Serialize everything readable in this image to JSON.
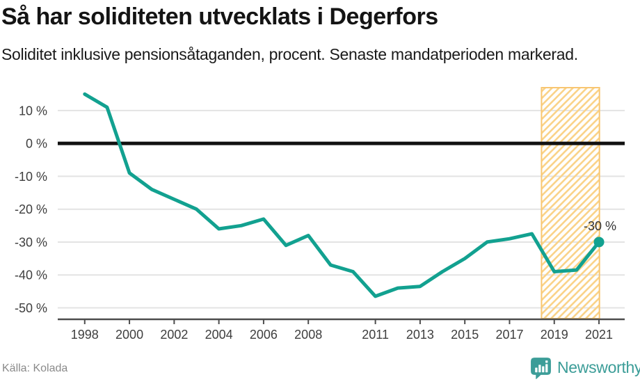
{
  "header": {
    "title": "Så har soliditeten utvecklats i Degerfors",
    "subtitle": "Soliditet inklusive pensionsåtaganden, procent. Senaste mandatperioden markerad."
  },
  "footer": {
    "source": "Källa: Kolada",
    "brand": "Newsworthy",
    "logo_icon": "newsworthy-speech-bubble-bar-chart-icon"
  },
  "colors": {
    "line": "#12A190",
    "dot": "#12A190",
    "zero_line": "#111111",
    "grid": "#E3E3E3",
    "axis": "#4D4D4D",
    "tick_text": "#3E3E3E",
    "band_border": "#F8C671",
    "band_hatch": "#FAD389",
    "annotation_text": "#333333",
    "brand_teal": "#3C9D98",
    "source_text": "#8A8A8A"
  },
  "chart_data": {
    "type": "line",
    "title": "Så har soliditeten utvecklats i Degerfors",
    "ylabel": "Soliditet inklusive pensionsåtaganden, procent",
    "x": [
      1998,
      1999,
      2000,
      2001,
      2002,
      2003,
      2004,
      2005,
      2006,
      2007,
      2008,
      2009,
      2010,
      2011,
      2012,
      2013,
      2014,
      2015,
      2016,
      2017,
      2018,
      2019,
      2020,
      2021
    ],
    "values": [
      15,
      11,
      -9,
      -14,
      -17,
      -20,
      -26,
      -25,
      -23,
      -31,
      -28,
      -37,
      -39,
      -46.5,
      -44,
      -43.5,
      -39,
      -35,
      -30,
      -29,
      -27.5,
      -39,
      -38.5,
      -30
    ],
    "x_ticks": [
      {
        "v": 1998,
        "label": "1998"
      },
      {
        "v": 2000,
        "label": "2000"
      },
      {
        "v": 2002,
        "label": "2002"
      },
      {
        "v": 2004,
        "label": "2004"
      },
      {
        "v": 2006,
        "label": "2006"
      },
      {
        "v": 2008,
        "label": "2008"
      },
      {
        "v": 2011,
        "label": "2011"
      },
      {
        "v": 2013,
        "label": "2013"
      },
      {
        "v": 2015,
        "label": "2015"
      },
      {
        "v": 2017,
        "label": "2017"
      },
      {
        "v": 2019,
        "label": "2019"
      },
      {
        "v": 2021,
        "label": "2021"
      }
    ],
    "y_ticks": [
      {
        "v": 10,
        "label": "10 %"
      },
      {
        "v": 0,
        "label": "0 %"
      },
      {
        "v": -10,
        "label": "-10 %"
      },
      {
        "v": -20,
        "label": "-20 %"
      },
      {
        "v": -30,
        "label": "-30 %"
      },
      {
        "v": -40,
        "label": "-40 %"
      },
      {
        "v": -50,
        "label": "-50 %"
      }
    ],
    "x_domain": [
      1996.7,
      2022.15
    ],
    "y_domain": [
      -53.5,
      17.6
    ],
    "grid": "horizontal",
    "zero_line": true,
    "legend": "none",
    "highlight_band": {
      "from": 2018.43,
      "to": 2021.02
    },
    "annotation": {
      "x": 2021,
      "y": -30,
      "label": "-30 %"
    }
  }
}
